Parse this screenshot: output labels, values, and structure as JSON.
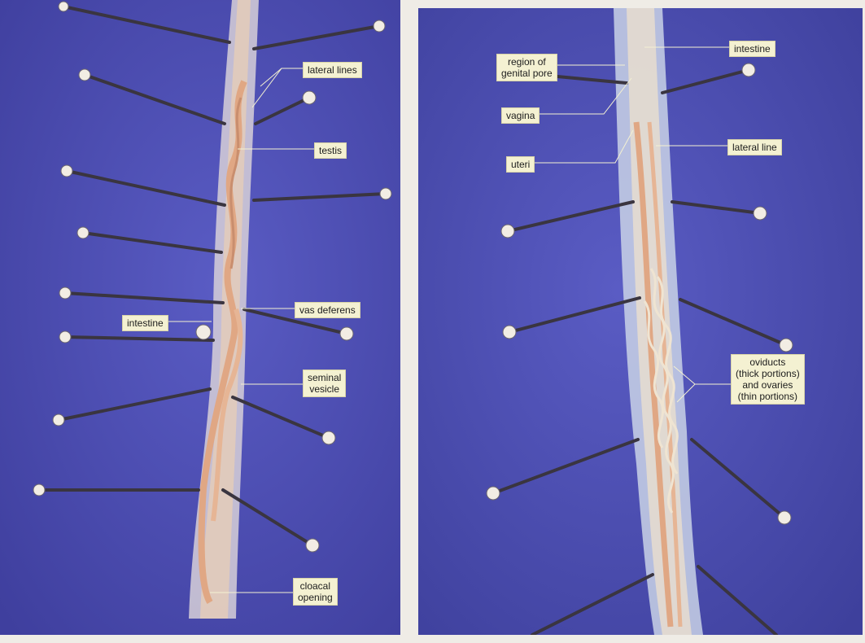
{
  "male_panel": {
    "labels": {
      "lateral_lines": "lateral lines",
      "testis": "testis",
      "vas_deferens": "vas deferens",
      "intestine": "intestine",
      "seminal_vesicle": "seminal\nvesicle",
      "cloacal_opening": "cloacal\nopening"
    }
  },
  "female_panel": {
    "labels": {
      "region_of_genital_pore": "region of\ngenital pore",
      "intestine": "intestine",
      "vagina": "vagina",
      "lateral_line": "lateral line",
      "uteri": "uteri",
      "oviducts_ovaries": "oviducts\n(thick portions)\nand ovaries\n(thin portions)"
    }
  },
  "colors": {
    "background_blue": "#4d4fb3",
    "worm_tissue": "#d9c8b8",
    "organ": "#e0a784",
    "pin_shaft": "#3a3540",
    "label_bg": "#f4f1d2"
  }
}
